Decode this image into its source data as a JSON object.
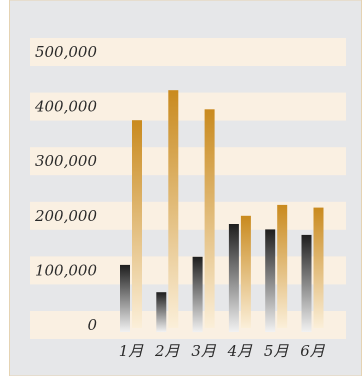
{
  "chart_data": {
    "type": "bar",
    "title": "",
    "xlabel": "",
    "ylabel": "",
    "categories": [
      "1月",
      "2月",
      "3月",
      "4月",
      "5月",
      "6月"
    ],
    "series": [
      {
        "values": [
          110000,
          60000,
          125000,
          185000,
          175000,
          165000
        ]
      },
      {
        "values": [
          375000,
          430000,
          395000,
          200000,
          220000,
          215000
        ]
      }
    ],
    "ylim": [
      0,
      500000
    ],
    "y_ticks": [
      "0",
      "100,000",
      "200,000",
      "300,000",
      "400,000",
      "500,000"
    ],
    "grid": "alternating horizontal bands",
    "legend": "none"
  },
  "colors": {
    "frame_background": "#e6e7e9",
    "frame_border": "#e5d3b3",
    "band_fill": "#faf0e2",
    "series_dark_top": "#1e1e1e",
    "series_dark_bottom": "#f2f2f2",
    "series_gold_top": "#c98a1e",
    "series_gold_bottom": "#fbefd9"
  }
}
